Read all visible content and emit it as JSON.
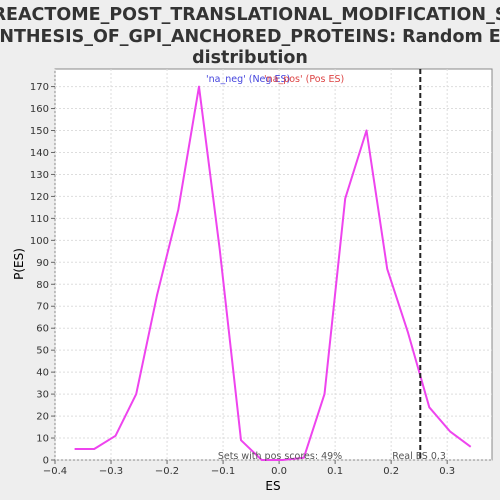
{
  "chart_data": {
    "type": "line",
    "title_lines": [
      "REACTOME_POST_TRANSLATIONAL_MODIFICATION_S",
      "YNTHESIS_OF_GPI_ANCHORED_PROTEINS: Random ES",
      "distribution"
    ],
    "xlabel": "ES",
    "ylabel": "P(ES)",
    "xlim": [
      -0.4,
      0.38
    ],
    "ylim": [
      0,
      178
    ],
    "x_ticks": [
      -0.4,
      -0.3,
      -0.2,
      -0.1,
      0.0,
      0.1,
      0.2,
      0.3
    ],
    "x_tick_labels": [
      "−0.4",
      "−0.3",
      "−0.2",
      "−0.1",
      "0.0",
      "0.1",
      "0.2",
      "0.3"
    ],
    "y_ticks": [
      0,
      10,
      20,
      30,
      40,
      50,
      60,
      70,
      80,
      90,
      100,
      110,
      120,
      130,
      140,
      150,
      160,
      170
    ],
    "grid": true,
    "series": [
      {
        "color": "#ee44ee",
        "x": [
          -0.365,
          -0.33,
          -0.292,
          -0.255,
          -0.218,
          -0.18,
          -0.143,
          -0.106,
          -0.068,
          -0.031,
          0.006,
          0.044,
          0.081,
          0.118,
          0.156,
          0.193,
          0.23,
          0.268,
          0.305,
          0.342
        ],
        "y": [
          5,
          5,
          11,
          30,
          75,
          114,
          170,
          96,
          9,
          0,
          0,
          1,
          30,
          119,
          150,
          87,
          58,
          24,
          13,
          6
        ]
      }
    ],
    "legend": [
      {
        "label": "'na_neg' (Neg ES)",
        "color": "#4444dd"
      },
      {
        "label": "'na_pos' (Pos ES)",
        "color": "#dd4444"
      }
    ],
    "real_es": {
      "x": 0.252,
      "label": "Real ES 0.3"
    },
    "annotation": "Sets with pos scores: 49%"
  }
}
